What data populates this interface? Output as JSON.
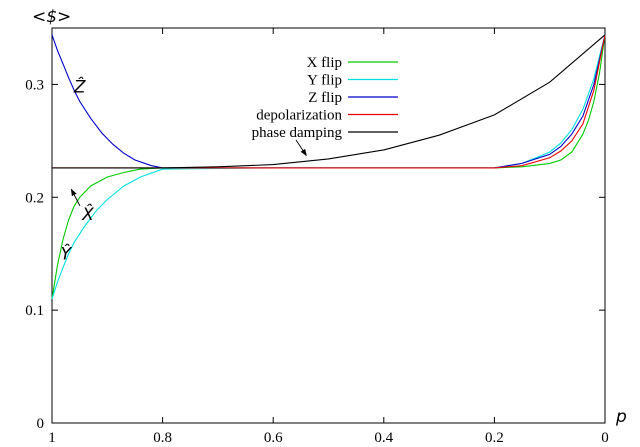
{
  "chart_data": {
    "type": "line",
    "ylabel": "<$>",
    "xlabel": "p",
    "xlim": [
      1,
      0
    ],
    "ylim": [
      0,
      0.35
    ],
    "x_ticks": [
      {
        "value": 1,
        "label": "1"
      },
      {
        "value": 0.8,
        "label": "0.8"
      },
      {
        "value": 0.6,
        "label": "0.6"
      },
      {
        "value": 0.4,
        "label": "0.4"
      },
      {
        "value": 0.2,
        "label": "0.2"
      },
      {
        "value": 0,
        "label": "0"
      }
    ],
    "y_ticks": [
      {
        "value": 0,
        "label": "0"
      },
      {
        "value": 0.1,
        "label": "0.1"
      },
      {
        "value": 0.2,
        "label": "0.2"
      },
      {
        "value": 0.3,
        "label": "0.3"
      }
    ],
    "grid": false,
    "legend_position": "top-right",
    "series": [
      {
        "name": "X flip",
        "color": "#00cc00",
        "x": [
          1,
          0.99,
          0.98,
          0.97,
          0.96,
          0.95,
          0.93,
          0.9,
          0.87,
          0.84,
          0.8,
          0.6,
          0.4,
          0.2,
          0.15,
          0.1,
          0.08,
          0.06,
          0.04,
          0.03,
          0.02,
          0.01,
          0
        ],
        "y": [
          0.11,
          0.14,
          0.163,
          0.18,
          0.192,
          0.2,
          0.21,
          0.218,
          0.222,
          0.225,
          0.226,
          0.226,
          0.226,
          0.226,
          0.227,
          0.23,
          0.233,
          0.24,
          0.256,
          0.268,
          0.285,
          0.31,
          0.344
        ]
      },
      {
        "name": "Y flip",
        "color": "#00e0e0",
        "x": [
          1,
          0.99,
          0.98,
          0.97,
          0.96,
          0.94,
          0.92,
          0.9,
          0.87,
          0.84,
          0.8,
          0.6,
          0.4,
          0.2,
          0.15,
          0.1,
          0.08,
          0.06,
          0.04,
          0.02,
          0.01,
          0
        ],
        "y": [
          0.11,
          0.125,
          0.138,
          0.15,
          0.16,
          0.175,
          0.188,
          0.198,
          0.21,
          0.218,
          0.225,
          0.226,
          0.226,
          0.226,
          0.23,
          0.24,
          0.248,
          0.26,
          0.278,
          0.305,
          0.325,
          0.344
        ]
      },
      {
        "name": "Z flip",
        "color": "#0000cc",
        "x": [
          1,
          0.99,
          0.98,
          0.97,
          0.96,
          0.95,
          0.93,
          0.91,
          0.89,
          0.87,
          0.85,
          0.82,
          0.8,
          0.6,
          0.4,
          0.2,
          0.15,
          0.1,
          0.08,
          0.06,
          0.04,
          0.02,
          0.01,
          0
        ],
        "y": [
          0.344,
          0.33,
          0.318,
          0.306,
          0.295,
          0.285,
          0.27,
          0.257,
          0.247,
          0.239,
          0.233,
          0.228,
          0.226,
          0.226,
          0.226,
          0.226,
          0.23,
          0.238,
          0.245,
          0.256,
          0.272,
          0.3,
          0.322,
          0.344
        ]
      },
      {
        "name": "depolarization",
        "color": "#ee0000",
        "x": [
          1,
          0.8,
          0.6,
          0.4,
          0.2,
          0.15,
          0.1,
          0.08,
          0.06,
          0.04,
          0.02,
          0.01,
          0
        ],
        "y": [
          0.226,
          0.226,
          0.226,
          0.226,
          0.226,
          0.228,
          0.235,
          0.241,
          0.25,
          0.265,
          0.295,
          0.32,
          0.344
        ]
      },
      {
        "name": "phase damping",
        "color": "#000000",
        "x": [
          1,
          0.9,
          0.8,
          0.7,
          0.6,
          0.5,
          0.4,
          0.3,
          0.2,
          0.1,
          0
        ],
        "y": [
          0.226,
          0.226,
          0.226,
          0.227,
          0.229,
          0.234,
          0.242,
          0.255,
          0.273,
          0.302,
          0.344
        ]
      }
    ],
    "annotations": [
      {
        "text": "Ẑ",
        "at": [
          0.95,
          0.293
        ]
      },
      {
        "text": "X̂",
        "at": [
          0.935,
          0.18
        ],
        "arrow_to": [
          0.965,
          0.207
        ]
      },
      {
        "text": "Ŷ",
        "at": [
          0.975,
          0.145
        ]
      },
      {
        "text": "",
        "at": [
          0.5,
          0.228
        ],
        "arrow_to": [
          0.54,
          0.237
        ],
        "from_legend": "phase damping"
      }
    ]
  }
}
